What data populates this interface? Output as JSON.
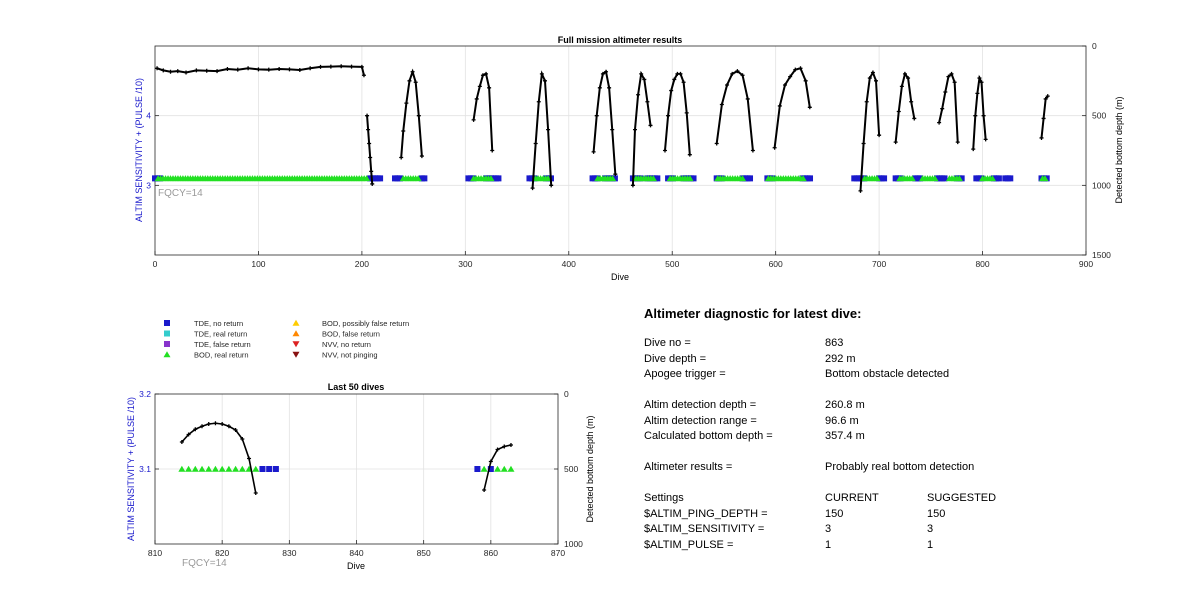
{
  "chart_data": [
    {
      "type": "scatter",
      "title": "Full mission altimeter results",
      "xlabel": "Dive",
      "ylabel_left": "ALTIM SENSITIVITY + (PULSE /10)",
      "ylabel_right": "Detected bottom depth (m)",
      "xlim": [
        0,
        900
      ],
      "ylim_left": [
        2,
        5
      ],
      "ylim_right": [
        1500,
        0
      ],
      "x_ticks": [
        0,
        100,
        200,
        300,
        400,
        500,
        600,
        700,
        800,
        900
      ],
      "y_ticks_left": [
        3,
        4
      ],
      "y_ticks_right": [
        0,
        500,
        1000,
        1500
      ],
      "grid": true,
      "annotation": "FQCY=14",
      "marker_y": 3.1,
      "series": [
        {
          "name": "TDE, no return",
          "color": "#1a1acc",
          "marker": "square",
          "x_ranges": [
            [
              0,
              5
            ],
            [
              208,
              218
            ],
            [
              232,
              238
            ],
            [
              258,
              262
            ],
            [
              303,
              308
            ],
            [
              320,
              332
            ],
            [
              362,
              368
            ],
            [
              378,
              385
            ],
            [
              423,
              430
            ],
            [
              435,
              446
            ],
            [
              462,
              470
            ],
            [
              476,
              486
            ],
            [
              496,
              502
            ],
            [
              511,
              522
            ],
            [
              543,
              549
            ],
            [
              568,
              576
            ],
            [
              592,
              599
            ],
            [
              626,
              634
            ],
            [
              676,
              686
            ],
            [
              700,
              706
            ],
            [
              716,
              722
            ],
            [
              735,
              742
            ],
            [
              756,
              764
            ],
            [
              775,
              782
            ],
            [
              794,
              800
            ],
            [
              811,
              818
            ],
            [
              822,
              829
            ],
            [
              857,
              860
            ],
            [
              862,
              864
            ]
          ]
        },
        {
          "name": "BOD, real return",
          "color": "#22e022",
          "marker": "triangle",
          "x_ranges": [
            [
              3,
              206
            ],
            [
              240,
              256
            ],
            [
              308,
              326
            ],
            [
              368,
              380
            ],
            [
              428,
              444
            ],
            [
              465,
              482
            ],
            [
              498,
              518
            ],
            [
              544,
              568
            ],
            [
              593,
              628
            ],
            [
              686,
              700
            ],
            [
              720,
              733
            ],
            [
              742,
              756
            ],
            [
              768,
              778
            ],
            [
              800,
              811
            ],
            [
              858,
              862
            ]
          ]
        },
        {
          "name": "Detected bottom depth",
          "color": "#000000",
          "marker": "plus",
          "axis": "right",
          "segments": [
            {
              "x": [
                2,
                8,
                15,
                22,
                30,
                40,
                50,
                60,
                70,
                80,
                90,
                100,
                110,
                120,
                130,
                140,
                150,
                160,
                170,
                180,
                190,
                200,
                202
              ],
              "y": [
                160,
                175,
                185,
                180,
                190,
                175,
                178,
                180,
                165,
                170,
                160,
                168,
                170,
                165,
                168,
                172,
                160,
                150,
                148,
                145,
                148,
                150,
                210
              ]
            },
            {
              "x": [
                205,
                206,
                207,
                208,
                209,
                210
              ],
              "y": [
                500,
                600,
                700,
                800,
                900,
                990
              ]
            },
            {
              "x": [
                238,
                240,
                243,
                246,
                249,
                252,
                255,
                258
              ],
              "y": [
                800,
                610,
                410,
                250,
                185,
                260,
                500,
                790
              ]
            },
            {
              "x": [
                308,
                311,
                314,
                317,
                320,
                323,
                326
              ],
              "y": [
                530,
                380,
                290,
                210,
                200,
                300,
                750
              ]
            },
            {
              "x": [
                365,
                368,
                371,
                374,
                377,
                380,
                383
              ],
              "y": [
                1020,
                700,
                400,
                200,
                250,
                600,
                1000
              ]
            },
            {
              "x": [
                424,
                427,
                430,
                433,
                436,
                439,
                442,
                445
              ],
              "y": [
                760,
                500,
                300,
                200,
                185,
                300,
                600,
                920
              ]
            },
            {
              "x": [
                462,
                464,
                467,
                470,
                473,
                476,
                479
              ],
              "y": [
                1000,
                600,
                350,
                200,
                240,
                400,
                570
              ]
            },
            {
              "x": [
                493,
                496,
                499,
                502,
                505,
                508,
                511,
                514,
                517
              ],
              "y": [
                750,
                500,
                320,
                240,
                200,
                200,
                260,
                480,
                780
              ]
            },
            {
              "x": [
                543,
                548,
                553,
                558,
                563,
                568,
                573,
                578
              ],
              "y": [
                700,
                420,
                280,
                200,
                180,
                210,
                380,
                750
              ]
            },
            {
              "x": [
                599,
                604,
                609,
                614,
                619,
                624,
                629,
                633
              ],
              "y": [
                730,
                430,
                280,
                220,
                170,
                160,
                250,
                440
              ]
            },
            {
              "x": [
                682,
                685,
                688,
                691,
                694,
                697,
                700
              ],
              "y": [
                1040,
                700,
                400,
                230,
                190,
                250,
                640
              ]
            },
            {
              "x": [
                716,
                719,
                722,
                725,
                728,
                731,
                734
              ],
              "y": [
                690,
                470,
                290,
                200,
                230,
                400,
                520
              ]
            },
            {
              "x": [
                758,
                761,
                764,
                767,
                770,
                773,
                776
              ],
              "y": [
                550,
                450,
                330,
                220,
                200,
                260,
                690
              ]
            },
            {
              "x": [
                791,
                793,
                795,
                797,
                799,
                801,
                803
              ],
              "y": [
                740,
                500,
                340,
                230,
                260,
                500,
                670
              ]
            },
            {
              "x": [
                857,
                859,
                861,
                863
              ],
              "y": [
                660,
                520,
                380,
                360
              ]
            }
          ]
        }
      ]
    },
    {
      "type": "scatter",
      "title": "Last 50 dives",
      "xlabel": "Dive",
      "ylabel_left": "ALTIM SENSITIVITY + (PULSE /10)",
      "ylabel_right": "Detected bottom depth (m)",
      "xlim": [
        810,
        870
      ],
      "ylim_left": [
        3.0,
        3.2
      ],
      "ylim_right": [
        1000,
        0
      ],
      "x_ticks": [
        810,
        820,
        830,
        840,
        850,
        860,
        870
      ],
      "y_ticks_left": [
        3.1,
        3.2
      ],
      "y_ticks_right": [
        0,
        500,
        1000
      ],
      "grid": true,
      "annotation": "FQCY=14",
      "marker_y": 3.1,
      "series": [
        {
          "name": "TDE, no return",
          "color": "#1a1acc",
          "marker": "square",
          "x": [
            826,
            827,
            828,
            858,
            860
          ]
        },
        {
          "name": "BOD, real return",
          "color": "#22e022",
          "marker": "triangle",
          "x": [
            814,
            815,
            816,
            817,
            818,
            819,
            820,
            821,
            822,
            823,
            824,
            825,
            859,
            861,
            862,
            863
          ]
        },
        {
          "name": "Detected bottom depth",
          "color": "#000000",
          "marker": "plus",
          "axis": "right",
          "segments": [
            {
              "x": [
                814,
                815,
                816,
                817,
                818,
                819,
                820,
                821,
                822,
                823,
                824,
                825
              ],
              "y": [
                320,
                270,
                235,
                215,
                200,
                195,
                200,
                215,
                240,
                300,
                430,
                660
              ]
            },
            {
              "x": [
                859,
                860,
                861,
                862,
                863
              ],
              "y": [
                640,
                450,
                370,
                350,
                340
              ]
            }
          ]
        }
      ]
    }
  ],
  "legend": {
    "items": [
      {
        "label": "TDE, no return",
        "color": "#1a1acc",
        "marker": "square"
      },
      {
        "label": "TDE, real return",
        "color": "#33cccc",
        "marker": "square"
      },
      {
        "label": "TDE, false return",
        "color": "#8833cc",
        "marker": "square"
      },
      {
        "label": "BOD, real return",
        "color": "#22e022",
        "marker": "triangle"
      },
      {
        "label": "BOD, possibly false return",
        "color": "#ffcc00",
        "marker": "triangle"
      },
      {
        "label": "BOD, false return",
        "color": "#ff8800",
        "marker": "triangle"
      },
      {
        "label": "NVV, no return",
        "color": "#dd2222",
        "marker": "triangle-down"
      },
      {
        "label": "NVV, not pinging",
        "color": "#881111",
        "marker": "triangle-down"
      }
    ]
  },
  "diagnostic": {
    "title": "Altimeter diagnostic for latest dive:",
    "dive_no": {
      "label": "Dive no =",
      "value": "863"
    },
    "dive_depth": {
      "label": "Dive depth =",
      "value": "292 m"
    },
    "apogee_trigger": {
      "label": "Apogee trigger =",
      "value": "Bottom obstacle detected"
    },
    "altim_detection_depth": {
      "label": "Altim detection depth =",
      "value": "260.8 m"
    },
    "altim_detection_range": {
      "label": "Altim detection range =",
      "value": "96.6 m"
    },
    "calculated_bottom_depth": {
      "label": "Calculated bottom depth =",
      "value": "357.4 m"
    },
    "altimeter_results": {
      "label": "Altimeter results =",
      "value": "Probably real bottom detection"
    },
    "settings": {
      "header": {
        "label": "Settings",
        "current": "CURRENT",
        "suggested": "SUGGESTED"
      },
      "rows": [
        {
          "label": "$ALTIM_PING_DEPTH =",
          "current": "150",
          "suggested": "150"
        },
        {
          "label": "$ALTIM_SENSITIVITY =",
          "current": "3",
          "suggested": "3"
        },
        {
          "label": "$ALTIM_PULSE =",
          "current": "1",
          "suggested": "1"
        }
      ]
    }
  }
}
